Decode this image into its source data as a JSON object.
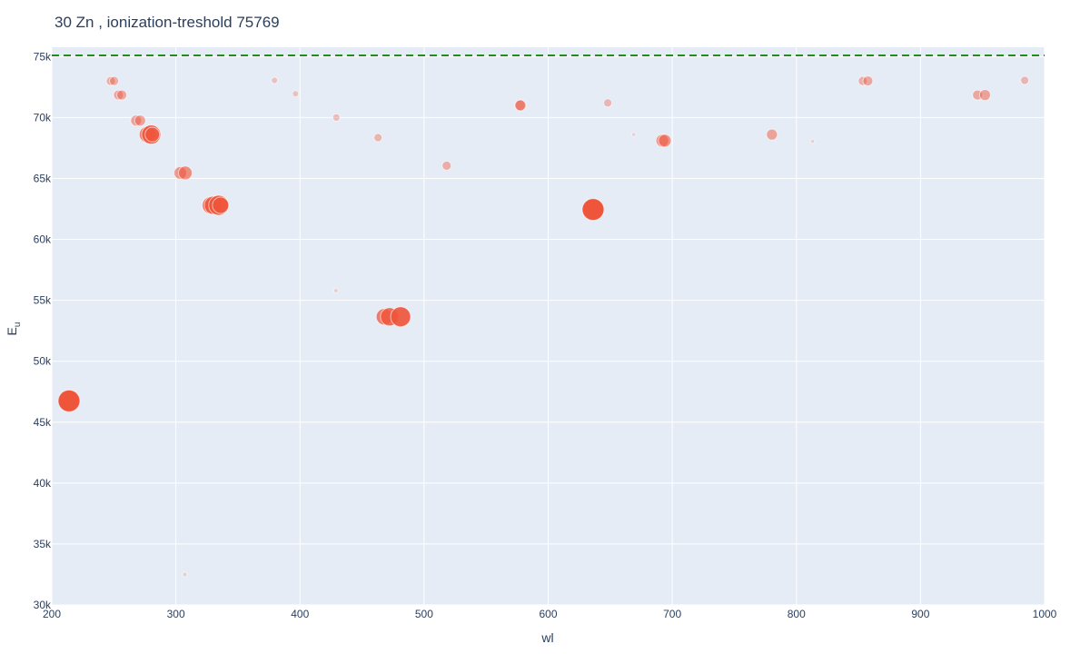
{
  "chart_data": {
    "type": "scatter",
    "title": "30 Zn , ionization-treshold 75769",
    "xlabel": "wl",
    "ylabel": "E",
    "ylabel_sub": "u",
    "xlim": [
      200,
      1000
    ],
    "ylim": [
      30000,
      75769
    ],
    "x_ticks": [
      200,
      300,
      400,
      500,
      600,
      700,
      800,
      900,
      1000
    ],
    "x_tick_labels": [
      "200",
      "300",
      "400",
      "500",
      "600",
      "700",
      "800",
      "900",
      "1000"
    ],
    "y_ticks": [
      30000,
      35000,
      40000,
      45000,
      50000,
      55000,
      60000,
      65000,
      70000,
      75000
    ],
    "y_tick_labels": [
      "30k",
      "35k",
      "40k",
      "45k",
      "50k",
      "55k",
      "60k",
      "65k",
      "70k",
      "75k"
    ],
    "ionization_threshold": 75769,
    "grid": true,
    "colors": {
      "marker": "#ef553b",
      "threshold_line": "#228b22",
      "plot_background": "#e5ecf6",
      "grid": "#ffffff",
      "text": "#2a3f5f"
    },
    "points": [
      {
        "x": 213.9,
        "y": 46745,
        "intensity": 1.0
      },
      {
        "x": 247.6,
        "y": 73000,
        "intensity": 0.3
      },
      {
        "x": 250.2,
        "y": 73000,
        "intensity": 0.3
      },
      {
        "x": 253.8,
        "y": 71850,
        "intensity": 0.35
      },
      {
        "x": 256.4,
        "y": 71850,
        "intensity": 0.35
      },
      {
        "x": 268.0,
        "y": 69750,
        "intensity": 0.4
      },
      {
        "x": 271.2,
        "y": 69750,
        "intensity": 0.4
      },
      {
        "x": 277.1,
        "y": 68600,
        "intensity": 0.7
      },
      {
        "x": 280.1,
        "y": 68600,
        "intensity": 0.85
      },
      {
        "x": 281.0,
        "y": 68600,
        "intensity": 0.6
      },
      {
        "x": 303.6,
        "y": 65450,
        "intensity": 0.5
      },
      {
        "x": 307.6,
        "y": 65450,
        "intensity": 0.55
      },
      {
        "x": 307.2,
        "y": 32500,
        "intensity": 0.05
      },
      {
        "x": 328.2,
        "y": 62800,
        "intensity": 0.75
      },
      {
        "x": 330.3,
        "y": 62800,
        "intensity": 0.8
      },
      {
        "x": 334.5,
        "y": 62800,
        "intensity": 0.9
      },
      {
        "x": 336.0,
        "y": 62800,
        "intensity": 0.7
      },
      {
        "x": 379.5,
        "y": 73050,
        "intensity": 0.15
      },
      {
        "x": 396.4,
        "y": 71950,
        "intensity": 0.15
      },
      {
        "x": 429.3,
        "y": 70000,
        "intensity": 0.2
      },
      {
        "x": 429.0,
        "y": 55800,
        "intensity": 0.05
      },
      {
        "x": 462.9,
        "y": 68350,
        "intensity": 0.25
      },
      {
        "x": 468.0,
        "y": 53650,
        "intensity": 0.7
      },
      {
        "x": 472.2,
        "y": 53650,
        "intensity": 0.8
      },
      {
        "x": 481.1,
        "y": 53650,
        "intensity": 0.9
      },
      {
        "x": 518.2,
        "y": 66050,
        "intensity": 0.3
      },
      {
        "x": 577.2,
        "y": 71000,
        "intensity": 0.4
      },
      {
        "x": 577.7,
        "y": 71000,
        "intensity": 0.4
      },
      {
        "x": 636.2,
        "y": 62450,
        "intensity": 1.0
      },
      {
        "x": 648.0,
        "y": 71200,
        "intensity": 0.25
      },
      {
        "x": 669.0,
        "y": 68600,
        "intensity": 0.03
      },
      {
        "x": 692.0,
        "y": 68100,
        "intensity": 0.5
      },
      {
        "x": 694.0,
        "y": 68100,
        "intensity": 0.5
      },
      {
        "x": 780.3,
        "y": 68600,
        "intensity": 0.4
      },
      {
        "x": 813.0,
        "y": 68050,
        "intensity": 0.03
      },
      {
        "x": 853.5,
        "y": 73000,
        "intensity": 0.3
      },
      {
        "x": 857.6,
        "y": 73000,
        "intensity": 0.35
      },
      {
        "x": 946.0,
        "y": 71850,
        "intensity": 0.35
      },
      {
        "x": 952.0,
        "y": 71850,
        "intensity": 0.4
      },
      {
        "x": 984.0,
        "y": 73050,
        "intensity": 0.25
      }
    ]
  }
}
